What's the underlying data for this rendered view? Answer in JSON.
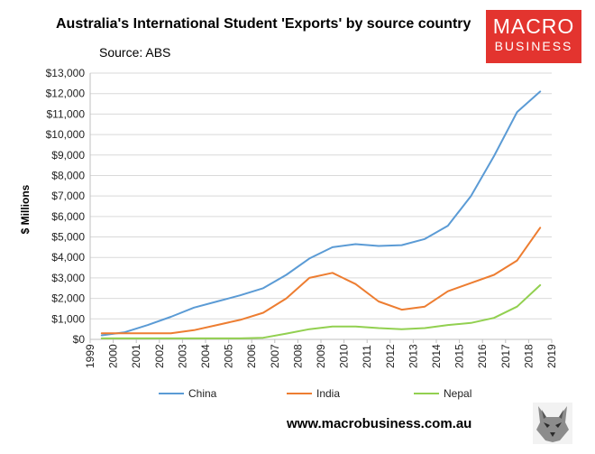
{
  "header": {
    "title": "Australia's International Student 'Exports' by source country",
    "source": "Source: ABS"
  },
  "logo": {
    "line1": "MACRO",
    "line2": "BUSINESS",
    "color": "#e3342f"
  },
  "footer": {
    "website": "www.macrobusiness.com.au"
  },
  "chart_data": {
    "type": "line",
    "title": "Australia's International Student 'Exports' by source country",
    "ylabel": "$ Millions",
    "xlabel": "",
    "xlim": [
      1999,
      2019
    ],
    "ylim": [
      0,
      13000
    ],
    "x_ticks": [
      "1999",
      "2000",
      "2001",
      "2002",
      "2003",
      "2004",
      "2005",
      "2006",
      "2007",
      "2008",
      "2009",
      "2010",
      "2011",
      "2012",
      "2013",
      "2014",
      "2015",
      "2016",
      "2017",
      "2018",
      "2019"
    ],
    "y_ticks": [
      "$0",
      "$1,000",
      "$2,000",
      "$3,000",
      "$4,000",
      "$5,000",
      "$6,000",
      "$7,000",
      "$8,000",
      "$9,000",
      "$10,000",
      "$11,000",
      "$12,000",
      "$13,000"
    ],
    "grid": "horizontal",
    "legend": "bottom",
    "x": [
      1999.5,
      2000.5,
      2001.5,
      2002.5,
      2003.5,
      2004.5,
      2005.5,
      2006.5,
      2007.5,
      2008.5,
      2009.5,
      2010.5,
      2011.5,
      2012.5,
      2013.5,
      2014.5,
      2015.5,
      2016.5,
      2017.5,
      2018.5
    ],
    "series": [
      {
        "name": "China",
        "color": "#5b9bd5",
        "values": [
          200,
          350,
          700,
          1100,
          1550,
          1850,
          2150,
          2500,
          3150,
          3950,
          4500,
          4650,
          4560,
          4600,
          4900,
          5550,
          7000,
          8950,
          11100,
          12100
        ]
      },
      {
        "name": "India",
        "color": "#ed7d31",
        "values": [
          300,
          300,
          300,
          300,
          450,
          700,
          950,
          1300,
          2000,
          3000,
          3250,
          2700,
          1850,
          1450,
          1600,
          2350,
          2750,
          3150,
          3850,
          5450
        ]
      },
      {
        "name": "Nepal",
        "color": "#92d050",
        "values": [
          50,
          50,
          50,
          50,
          50,
          50,
          50,
          80,
          280,
          500,
          630,
          630,
          550,
          500,
          550,
          700,
          800,
          1050,
          1600,
          2650
        ]
      }
    ]
  }
}
